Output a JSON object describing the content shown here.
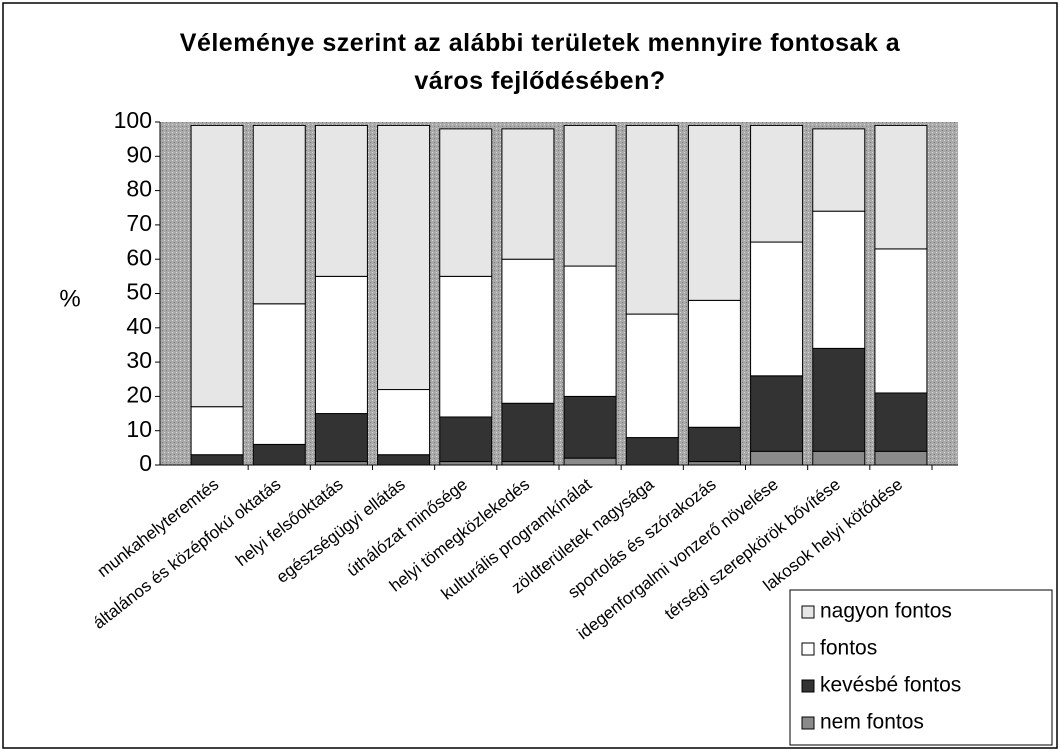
{
  "chart_data": {
    "type": "stacked_bar",
    "title": "Véleménye szerint az alábbi területek mennyire fontosak a város fejlődésében?",
    "y_label": "%",
    "categories": [
      "munkahelyteremtés",
      "általános és középfokú oktatás",
      "helyi felsőoktatás",
      "egészségügyi ellátás",
      "úthálózat minősége",
      "helyi tömegközlekedés",
      "kulturális programkínálat",
      "zöldterületek nagysága",
      "sportolás és szórakozás",
      "idegenforgalmi vonzerő növelése",
      "térségi szerepkörök bővítése",
      "lakosok helyi kötődése"
    ],
    "series": [
      {
        "name": "nem fontos",
        "color": "#8a8a8a",
        "values": [
          0,
          0,
          1,
          0,
          1,
          1,
          2,
          0,
          1,
          4,
          4,
          4
        ]
      },
      {
        "name": "kevésbé fontos",
        "color": "#333333",
        "values": [
          3,
          6,
          14,
          3,
          13,
          17,
          18,
          8,
          10,
          22,
          30,
          17
        ]
      },
      {
        "name": "fontos",
        "color": "#ffffff",
        "values": [
          14,
          41,
          40,
          19,
          41,
          42,
          38,
          36,
          37,
          39,
          40,
          42
        ]
      },
      {
        "name": "nagyon fontos",
        "color": "#e6e6e6",
        "values": [
          82,
          52,
          44,
          77,
          43,
          38,
          41,
          55,
          51,
          34,
          24,
          36
        ]
      }
    ],
    "ylim": [
      0,
      100
    ],
    "yticks": [
      0,
      10,
      20,
      30,
      40,
      50,
      60,
      70,
      80,
      90,
      100
    ],
    "legend": "bottom-right"
  }
}
